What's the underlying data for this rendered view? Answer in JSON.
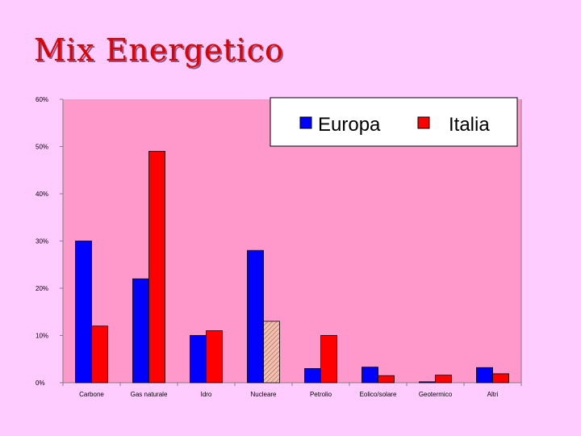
{
  "slide": {
    "title": "Mix Energetico"
  },
  "colors": {
    "background": "#ffccff",
    "plot_area": "#ff99cc",
    "europa": "#0000ff",
    "italia": "#ff0000",
    "nuclear_italia_pattern": "#e8a098",
    "title": "#e00000"
  },
  "chart_data": {
    "type": "bar",
    "title": "",
    "xlabel": "",
    "ylabel": "",
    "ylim": [
      0,
      0.6
    ],
    "yticks": [
      "0%",
      "10%",
      "20%",
      "30%",
      "40%",
      "50%",
      "60%"
    ],
    "categories": [
      "Carbone",
      "Gas naturale",
      "Idro",
      "Nucleare",
      "Petrolio",
      "Eolico/solare",
      "Geotermico",
      "Altri"
    ],
    "series": [
      {
        "name": "Europa",
        "values": [
          0.3,
          0.22,
          0.1,
          0.28,
          0.03,
          0.033,
          0.002,
          0.032
        ]
      },
      {
        "name": "Italia",
        "values": [
          0.12,
          0.49,
          0.11,
          0.13,
          0.1,
          0.015,
          0.016,
          0.019
        ]
      }
    ],
    "hatched": [
      {
        "series": "Italia",
        "category": "Nucleare"
      }
    ],
    "grid": false,
    "legend": "top-right"
  }
}
